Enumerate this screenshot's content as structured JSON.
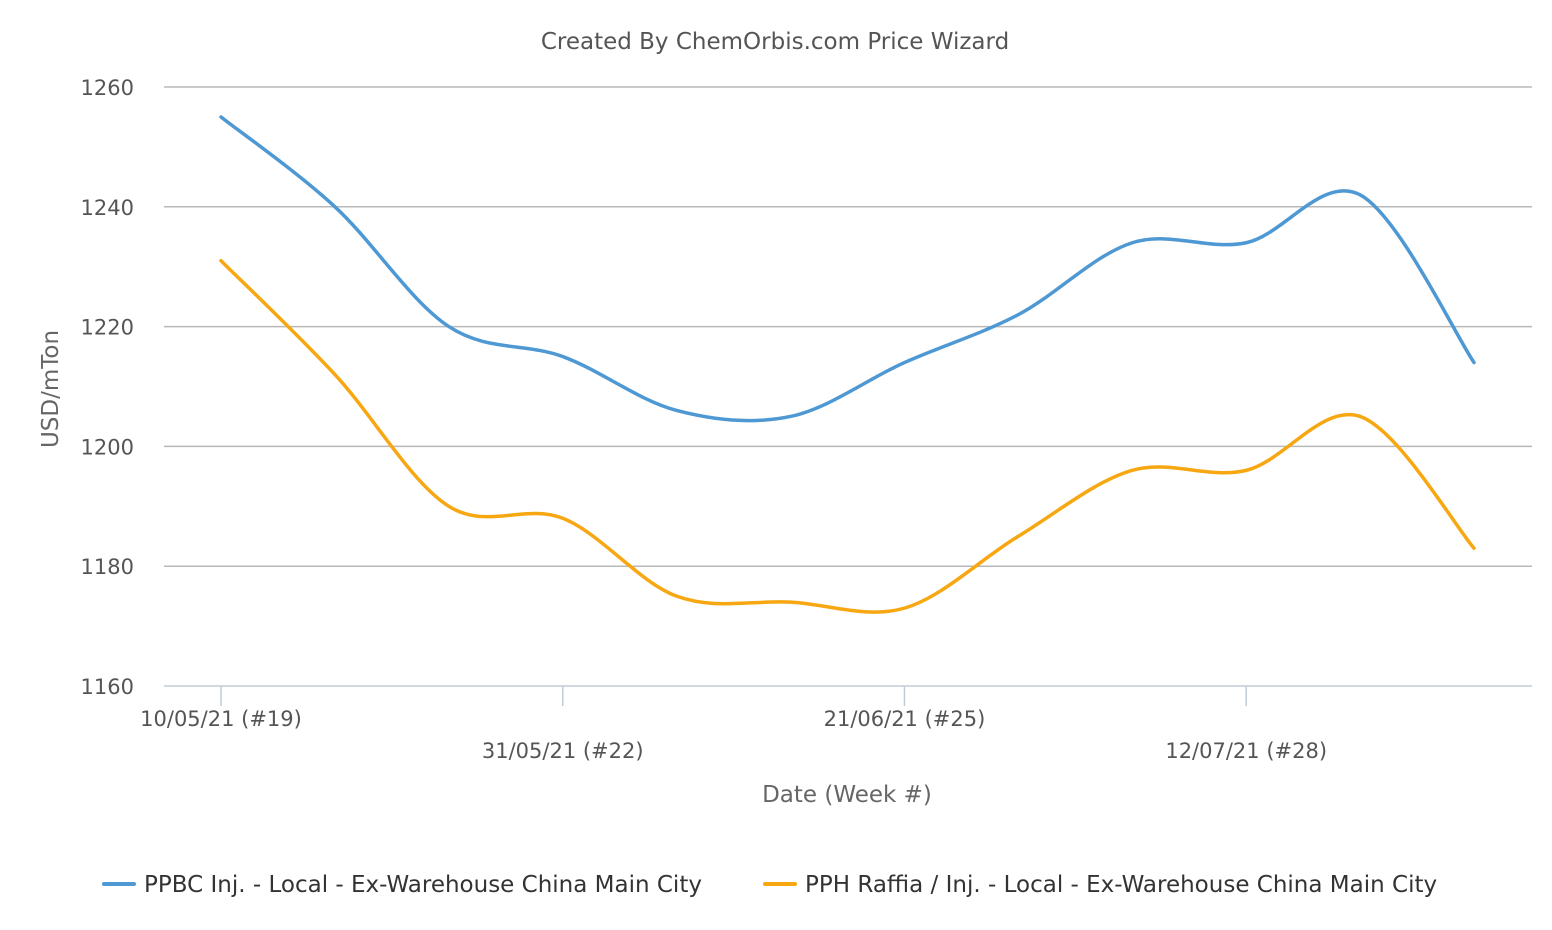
{
  "chart_data": {
    "type": "line",
    "title": "Created By ChemOrbis.com Price Wizard",
    "xlabel": "Date (Week #)",
    "ylabel": "USD/mTon",
    "ylim": [
      1160,
      1260
    ],
    "yticks": [
      1160,
      1180,
      1200,
      1220,
      1240,
      1260
    ],
    "x": [
      "10/05/21",
      "17/05/21",
      "24/05/21",
      "31/05/21",
      "07/06/21",
      "14/06/21",
      "21/06/21",
      "28/06/21",
      "05/07/21",
      "12/07/21",
      "19/07/21",
      "26/07/21"
    ],
    "x_tick_labels": [
      {
        "date": "10/05/21",
        "label": "10/05/21 (#19)"
      },
      {
        "date": "31/05/21",
        "label": "31/05/21 (#22)"
      },
      {
        "date": "21/06/21",
        "label": "21/06/21 (#25)"
      },
      {
        "date": "12/07/21",
        "label": "12/07/21 (#28)"
      }
    ],
    "grid": true,
    "legend_position": "bottom",
    "series": [
      {
        "name": "PPBC Inj. - Local - Ex-Warehouse China Main City",
        "color": "#4e98d3",
        "values": [
          1255,
          1240,
          1220,
          1215,
          1206,
          1205,
          1214,
          1222,
          1234,
          1234,
          1242,
          1214
        ]
      },
      {
        "name": "PPH Raffia / Inj. - Local - Ex-Warehouse China Main City",
        "color": "#f7a711",
        "values": [
          1231,
          1212,
          1190,
          1188,
          1175,
          1174,
          1173,
          1185,
          1196,
          1196,
          1205,
          1183
        ]
      }
    ]
  }
}
